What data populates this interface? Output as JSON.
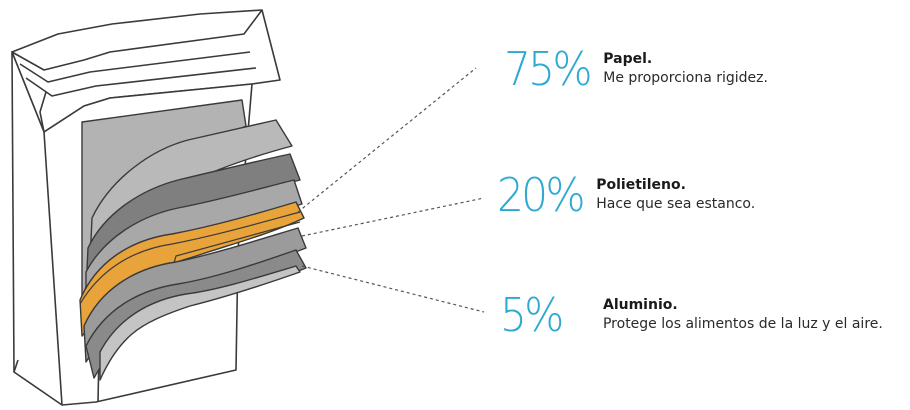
{
  "layers": [
    {
      "percent": "75%",
      "name": "Papel.",
      "description": "Me proporciona rigidez.",
      "color": "#9b9b9b"
    },
    {
      "percent": "20%",
      "name": "Polietileno.",
      "description": "Hace que sea estanco.",
      "color": "#8a8a8a"
    },
    {
      "percent": "5%",
      "name": "Aluminio.",
      "description": "Protege los alimentos de la luz y el aire.",
      "color": "#e8a33a"
    }
  ],
  "colors": {
    "percent_accent": "#2ea9cf",
    "outline": "#3a3a3a",
    "paper_gray": "#b3b3b3",
    "dark_gray": "#7f7f7f",
    "aluminum_orange": "#e8a33a"
  }
}
